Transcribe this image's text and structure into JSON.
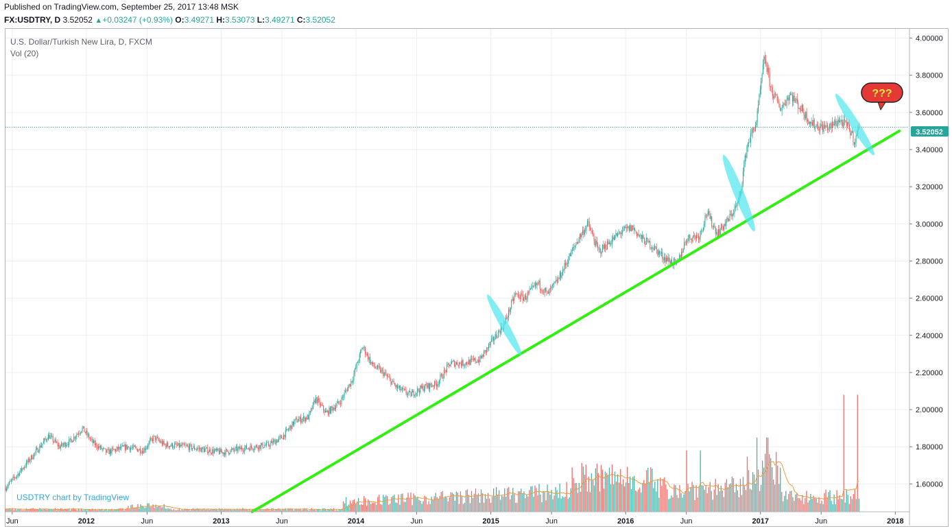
{
  "header": {
    "published": "Published on TradingView.com, September 25, 2017 13:48 MSK",
    "symbol": "FX:USDTRY, D",
    "last": "3.52052",
    "change": "+0.03247 (+0.93%)",
    "o_label": "O:",
    "o_value": "3.49271",
    "h_label": "H:",
    "h_value": "3.53073",
    "l_label": "L:",
    "l_value": "3.49271",
    "c_label": "C:",
    "c_value": "3.52052"
  },
  "legend": {
    "title": "U.S. Dollar/Turkish New Lira, D, FXCM",
    "volume": "Vol (20)"
  },
  "branding": "USDTRY chart by TradingView",
  "annotation_text": "???",
  "price_label": "3.52052",
  "colors": {
    "up": "#26a69a",
    "down": "#ef5350",
    "trendline": "#33ee11",
    "highlight": "#4de6ee",
    "ma": "#f29a3c",
    "bubble": "#e53935",
    "bubble_text": "#ffeb3b"
  },
  "chart_data": {
    "type": "candlestick",
    "x_ticks": [
      {
        "label": "Jun",
        "date": "2011.45"
      },
      {
        "label": "2012",
        "date": "2012.0"
      },
      {
        "label": "Jun",
        "date": "2012.45"
      },
      {
        "label": "2013",
        "date": "2013.0"
      },
      {
        "label": "Jun",
        "date": "2013.45"
      },
      {
        "label": "2014",
        "date": "2014.0"
      },
      {
        "label": "Jun",
        "date": "2014.45"
      },
      {
        "label": "2015",
        "date": "2015.0"
      },
      {
        "label": "Jun",
        "date": "2015.45"
      },
      {
        "label": "2016",
        "date": "2016.0"
      },
      {
        "label": "Jun",
        "date": "2016.45"
      },
      {
        "label": "2017",
        "date": "2017.0"
      },
      {
        "label": "Jun",
        "date": "2017.45"
      },
      {
        "label": "2018",
        "date": "2018.0"
      }
    ],
    "y_ticks": [
      "4.00000",
      "3.80000",
      "3.60000",
      "3.40000",
      "3.20000",
      "3.00000",
      "2.80000",
      "2.60000",
      "2.40000",
      "2.20000",
      "2.00000",
      "1.80000",
      "1.60000"
    ],
    "ylim": [
      1.45,
      4.05
    ],
    "xlim": [
      2011.4,
      2018.1
    ],
    "price_path": [
      [
        2011.4,
        1.58
      ],
      [
        2011.5,
        1.66
      ],
      [
        2011.6,
        1.75
      ],
      [
        2011.72,
        1.86
      ],
      [
        2011.8,
        1.8
      ],
      [
        2011.88,
        1.83
      ],
      [
        2011.97,
        1.9
      ],
      [
        2012.05,
        1.82
      ],
      [
        2012.15,
        1.77
      ],
      [
        2012.3,
        1.8
      ],
      [
        2012.42,
        1.78
      ],
      [
        2012.5,
        1.85
      ],
      [
        2012.58,
        1.81
      ],
      [
        2012.75,
        1.8
      ],
      [
        2012.9,
        1.78
      ],
      [
        2013.02,
        1.77
      ],
      [
        2013.15,
        1.79
      ],
      [
        2013.25,
        1.8
      ],
      [
        2013.35,
        1.81
      ],
      [
        2013.45,
        1.85
      ],
      [
        2013.55,
        1.94
      ],
      [
        2013.65,
        1.96
      ],
      [
        2013.7,
        2.06
      ],
      [
        2013.78,
        1.98
      ],
      [
        2013.88,
        2.04
      ],
      [
        2013.97,
        2.16
      ],
      [
        2014.05,
        2.34
      ],
      [
        2014.12,
        2.24
      ],
      [
        2014.2,
        2.2
      ],
      [
        2014.3,
        2.12
      ],
      [
        2014.4,
        2.08
      ],
      [
        2014.5,
        2.12
      ],
      [
        2014.6,
        2.14
      ],
      [
        2014.7,
        2.25
      ],
      [
        2014.8,
        2.25
      ],
      [
        2014.92,
        2.27
      ],
      [
        2015.02,
        2.38
      ],
      [
        2015.1,
        2.46
      ],
      [
        2015.18,
        2.62
      ],
      [
        2015.25,
        2.6
      ],
      [
        2015.35,
        2.68
      ],
      [
        2015.42,
        2.62
      ],
      [
        2015.5,
        2.7
      ],
      [
        2015.58,
        2.82
      ],
      [
        2015.65,
        2.92
      ],
      [
        2015.72,
        3.0
      ],
      [
        2015.8,
        2.85
      ],
      [
        2015.88,
        2.9
      ],
      [
        2015.97,
        2.96
      ],
      [
        2016.05,
        2.98
      ],
      [
        2016.12,
        2.92
      ],
      [
        2016.2,
        2.88
      ],
      [
        2016.28,
        2.82
      ],
      [
        2016.38,
        2.78
      ],
      [
        2016.45,
        2.92
      ],
      [
        2016.55,
        2.94
      ],
      [
        2016.6,
        3.06
      ],
      [
        2016.68,
        2.95
      ],
      [
        2016.76,
        3.02
      ],
      [
        2016.84,
        3.12
      ],
      [
        2016.9,
        3.42
      ],
      [
        2016.97,
        3.55
      ],
      [
        2017.03,
        3.9
      ],
      [
        2017.08,
        3.72
      ],
      [
        2017.15,
        3.62
      ],
      [
        2017.22,
        3.7
      ],
      [
        2017.3,
        3.62
      ],
      [
        2017.38,
        3.54
      ],
      [
        2017.45,
        3.52
      ],
      [
        2017.52,
        3.52
      ],
      [
        2017.58,
        3.56
      ],
      [
        2017.65,
        3.52
      ],
      [
        2017.68,
        3.48
      ],
      [
        2017.7,
        3.44
      ],
      [
        2017.73,
        3.52
      ]
    ],
    "last_price": 3.52052,
    "trendline": [
      [
        2013.23,
        1.45
      ],
      [
        2018.03,
        3.5
      ]
    ],
    "highlights": [
      {
        "x": 2015.1,
        "y": 2.455,
        "rx": 0.122,
        "ry": 0.188,
        "angle": -29
      },
      {
        "x": 2016.84,
        "y": 3.165,
        "rx": 0.147,
        "ry": 0.222,
        "angle": -22
      },
      {
        "x": 2017.7,
        "y": 3.535,
        "rx": 0.133,
        "ry": 0.195,
        "angle": -32
      }
    ],
    "volume_peaks": [
      [
        2017.62,
        2.08
      ],
      [
        2017.72,
        2.08
      ],
      [
        2017.05,
        1.85
      ],
      [
        2016.97,
        1.85
      ],
      [
        2016.45,
        1.78
      ],
      [
        2016.55,
        1.78
      ]
    ]
  }
}
